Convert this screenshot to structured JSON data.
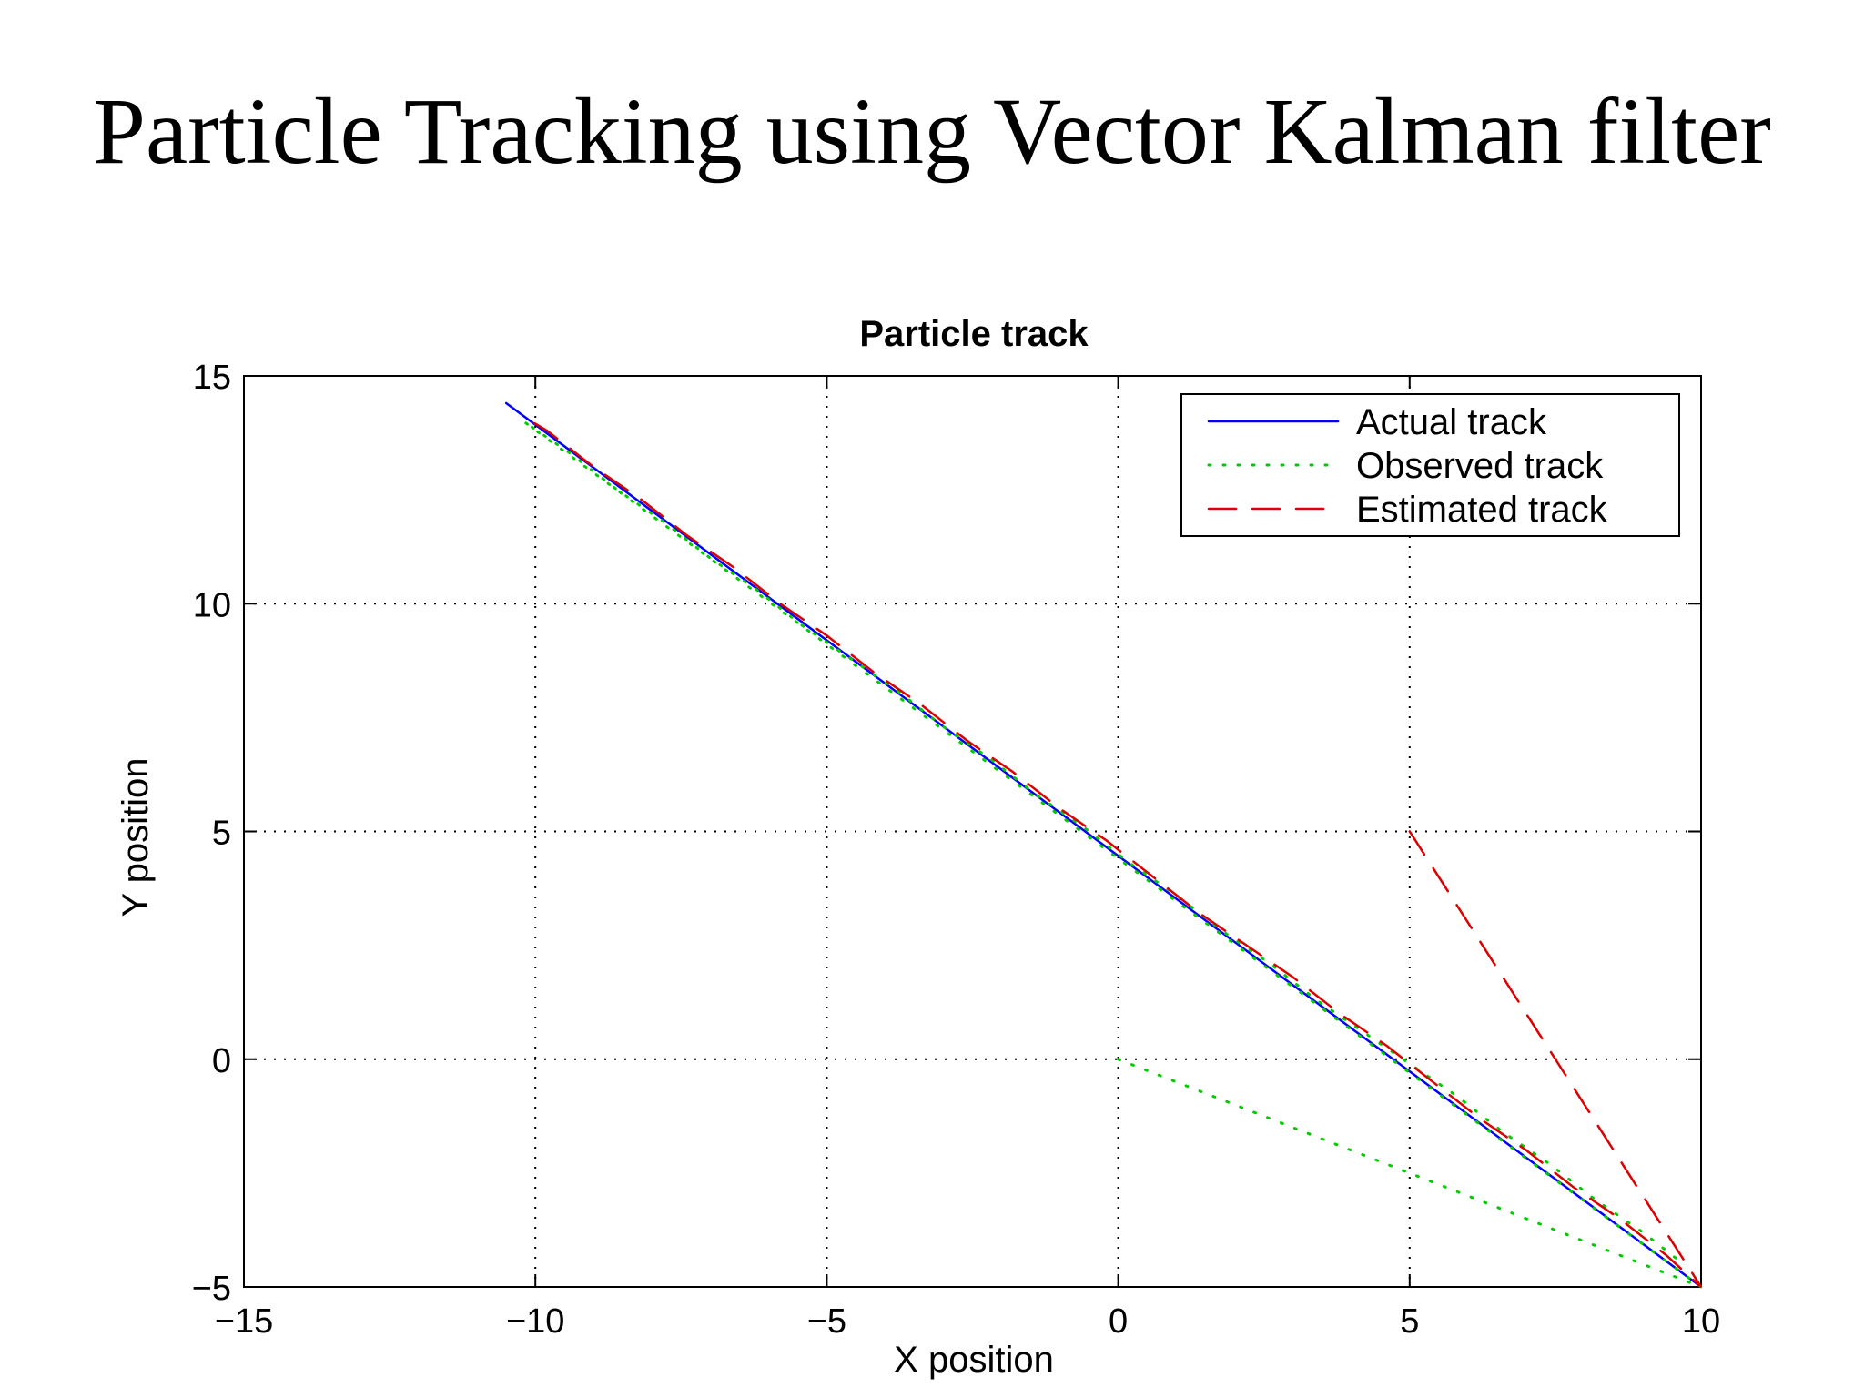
{
  "slide": {
    "title": "Particle Tracking using Vector Kalman filter"
  },
  "chart_data": {
    "type": "line",
    "title": "Particle track",
    "xlabel": "X position",
    "ylabel": "Y position",
    "xlim": [
      -15,
      10
    ],
    "ylim": [
      -5,
      15
    ],
    "xticks": [
      -15,
      -10,
      -5,
      0,
      5,
      10
    ],
    "yticks": [
      -5,
      0,
      5,
      10,
      15
    ],
    "grid": true,
    "legend_position": "top-right",
    "series": [
      {
        "name": "Actual track",
        "style": "solid",
        "color": "#0000ff",
        "x": [
          -10.5,
          10
        ],
        "y": [
          14.4,
          -5
        ]
      },
      {
        "name": "Observed track",
        "style": "dotted",
        "color": "#00cc00",
        "x": [
          0,
          10,
          -10.2,
          -9.4,
          -8.6,
          -7.8,
          -7.0,
          -6.2,
          -5.4,
          -4.6,
          -3.8,
          -3.0,
          -2.2,
          -1.4,
          -0.6,
          0.2,
          1.0,
          1.8,
          2.6,
          3.4,
          4.2,
          5.0,
          5.8,
          6.6,
          7.4,
          8.2,
          9.0,
          9.6
        ],
        "y": [
          0,
          -5,
          14.0,
          13.3,
          12.5,
          11.8,
          11.0,
          10.3,
          9.5,
          8.8,
          8.1,
          7.3,
          6.6,
          5.8,
          5.1,
          4.3,
          3.6,
          2.8,
          2.1,
          1.3,
          0.6,
          -0.1,
          -0.8,
          -1.6,
          -2.3,
          -3.1,
          -3.8,
          -4.4
        ]
      },
      {
        "name": "Estimated track",
        "style": "dashed",
        "color": "#dd0000",
        "x": [
          5,
          10,
          9.4,
          8.6,
          7.8,
          7.0,
          6.2,
          5.4,
          4.6,
          3.8,
          3.0,
          2.2,
          1.4,
          0.6,
          -0.2,
          -1.0,
          -1.8,
          -2.6,
          -3.4,
          -4.2,
          -5.0,
          -5.8,
          -6.6,
          -7.4,
          -8.2,
          -9.0,
          -9.8,
          -10.2
        ],
        "y": [
          5,
          -5,
          -4.3,
          -3.5,
          -2.8,
          -2.0,
          -1.3,
          -0.5,
          0.3,
          1.0,
          1.8,
          2.5,
          3.2,
          4.0,
          4.8,
          5.5,
          6.3,
          7.0,
          7.8,
          8.5,
          9.3,
          10.0,
          10.8,
          11.5,
          12.3,
          13.0,
          13.8,
          14.1
        ]
      }
    ]
  }
}
